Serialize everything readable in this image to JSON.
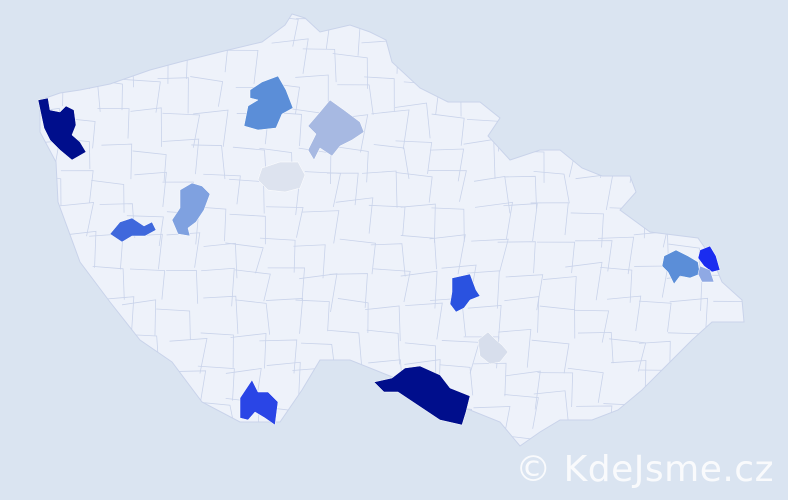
{
  "map": {
    "background_color": "#dae4f1",
    "land_color": "#eef2fa",
    "border_color": "#c9d3ea",
    "highlighted_districts": [
      {
        "id": "nw-1",
        "color": "#000e8c"
      },
      {
        "id": "south-1",
        "color": "#000e8c"
      },
      {
        "id": "south-2",
        "color": "#2a45e6"
      },
      {
        "id": "center-1",
        "color": "#2a52e0"
      },
      {
        "id": "west-1",
        "color": "#3f68dc"
      },
      {
        "id": "west-2",
        "color": "#7fa1e0"
      },
      {
        "id": "north-1",
        "color": "#5b8ed8"
      },
      {
        "id": "north-2",
        "color": "#a7b9e2"
      },
      {
        "id": "center-2",
        "color": "#dde3ef"
      },
      {
        "id": "south-3",
        "color": "#d7deec"
      },
      {
        "id": "east-1",
        "color": "#5b8ed8"
      },
      {
        "id": "east-2",
        "color": "#1a2cf0"
      },
      {
        "id": "east-3",
        "color": "#8fa9e4"
      }
    ]
  },
  "watermark": {
    "text": "© KdeJsme.cz"
  }
}
